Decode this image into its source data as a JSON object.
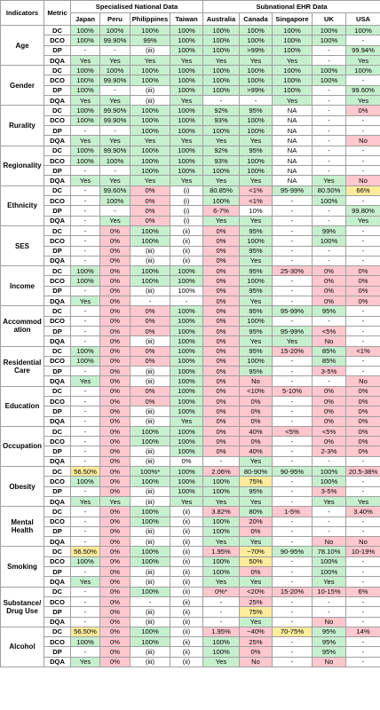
{
  "header": {
    "indicators": "Indicators",
    "metric": "Metric",
    "group1": "Specialised National Data",
    "group2": "Subnational EHR Data",
    "countries": [
      "Japan",
      "Peru",
      "Philippines",
      "Taiwan",
      "Australia",
      "Canada",
      "Singapore",
      "UK",
      "USA"
    ]
  },
  "colors": {
    "g": "#c6efce",
    "r": "#ffc7ce",
    "y": "#ffeb9c",
    "w": "#ffffff"
  },
  "indicators": [
    {
      "name": "Age",
      "rows": [
        {
          "metric": "DC",
          "cells": [
            "100%",
            "100%",
            "100%",
            "100%",
            "100%",
            "100%",
            "100%",
            "100%",
            "100%"
          ],
          "fills": "ggggggggg"
        },
        {
          "metric": "DCO",
          "cells": [
            "100%",
            "99.90%",
            "99%",
            "100%",
            "100%",
            "100%",
            "100%",
            "100%",
            "-"
          ],
          "fills": "ggggggggw"
        },
        {
          "metric": "DP",
          "cells": [
            "-",
            "-",
            "(iii)",
            "100%",
            "100%",
            ">99%",
            "100%",
            "-",
            "99.94%"
          ],
          "fills": "wwwggggwg"
        },
        {
          "metric": "DQA",
          "cells": [
            "Yes",
            "Yes",
            "Yes",
            "Yes",
            "Yes",
            "Yes",
            "Yes",
            "-",
            "Yes"
          ],
          "fills": "gggggggwg"
        }
      ]
    },
    {
      "name": "Gender",
      "rows": [
        {
          "metric": "DC",
          "cells": [
            "100%",
            "100%",
            "100%",
            "100%",
            "100%",
            "100%",
            "100%",
            "100%",
            "100%"
          ],
          "fills": "ggggggggg"
        },
        {
          "metric": "DCO",
          "cells": [
            "100%",
            "99.90%",
            "100%",
            "100%",
            "100%",
            "100%",
            "100%",
            "100%",
            "-"
          ],
          "fills": "ggggggggw"
        },
        {
          "metric": "DP",
          "cells": [
            "100%",
            "-",
            "(iii)",
            "100%",
            "100%",
            ">99%",
            "100%",
            "-",
            "99.60%"
          ],
          "fills": "gwwggggwg"
        },
        {
          "metric": "DQA",
          "cells": [
            "Yes",
            "Yes",
            "(iii)",
            "Yes",
            "-",
            "-",
            "Yes",
            "-",
            "Yes"
          ],
          "fills": "ggwgwwgwg"
        }
      ]
    },
    {
      "name": "Rurality",
      "rows": [
        {
          "metric": "DC",
          "cells": [
            "100%",
            "99.90%",
            "100%",
            "100%",
            "92%",
            "95%",
            "NA",
            "-",
            "0%"
          ],
          "fills": "ggggggwwr"
        },
        {
          "metric": "DCO",
          "cells": [
            "100%",
            "99.90%",
            "100%",
            "100%",
            "93%",
            "100%",
            "NA",
            "-",
            "-"
          ],
          "fills": "ggggggwww"
        },
        {
          "metric": "DP",
          "cells": [
            "-",
            "-",
            "100%",
            "100%",
            "100%",
            "100%",
            "NA",
            "-",
            "-"
          ],
          "fills": "wwggggwww"
        },
        {
          "metric": "DQA",
          "cells": [
            "Yes",
            "Yes",
            "Yes",
            "Yes",
            "Yes",
            "Yes",
            "NA",
            "-",
            "No"
          ],
          "fills": "ggggggwwr"
        }
      ]
    },
    {
      "name": "Regionality",
      "rows": [
        {
          "metric": "DC",
          "cells": [
            "100%",
            "99.90%",
            "100%",
            "100%",
            "92%",
            "95%",
            "NA",
            "-",
            "-"
          ],
          "fills": "ggggggwww"
        },
        {
          "metric": "DCO",
          "cells": [
            "100%",
            "100%",
            "100%",
            "100%",
            "93%",
            "100%",
            "NA",
            "-",
            "-"
          ],
          "fills": "ggggggwww"
        },
        {
          "metric": "DP",
          "cells": [
            "-",
            "-",
            "100%",
            "100%",
            "100%",
            "100%",
            "NA",
            "-",
            "-"
          ],
          "fills": "wwggggwww"
        },
        {
          "metric": "DQA",
          "cells": [
            "Yes",
            "Yes",
            "Yes",
            "Yes",
            "Yes",
            "Yes",
            "NA",
            "Yes",
            "No"
          ],
          "fills": "ggggggwgr"
        }
      ]
    },
    {
      "name": "Ethnicity",
      "rows": [
        {
          "metric": "DC",
          "cells": [
            "-",
            "99.60%",
            "0%",
            "(i)",
            "80.85%",
            "<1%",
            "95-99%",
            "80.50%",
            "66%"
          ],
          "fills": "wgrwgrggy"
        },
        {
          "metric": "DCO",
          "cells": [
            "-",
            "100%",
            "0%",
            "(i)",
            "100%",
            "<1%",
            "-",
            "100%",
            "-"
          ],
          "fills": "wgrwgrwgw"
        },
        {
          "metric": "DP",
          "cells": [
            "-",
            "-",
            "0%",
            "(i)",
            "6-7%",
            "10%",
            "-",
            "-",
            "99.80%"
          ],
          "fills": "wwrwrwwwg"
        },
        {
          "metric": "DQA",
          "cells": [
            "-",
            "Yes",
            "0%",
            "(i)",
            "Yes",
            "Yes",
            "-",
            "-",
            "Yes"
          ],
          "fills": "wgrwggwwg"
        }
      ]
    },
    {
      "name": "SES",
      "rows": [
        {
          "metric": "DC",
          "cells": [
            "-",
            "0%",
            "100%",
            "(ii)",
            "0%",
            "95%",
            "-",
            "99%",
            "-"
          ],
          "fills": "wrgwrgwgw"
        },
        {
          "metric": "DCO",
          "cells": [
            "-",
            "0%",
            "100%",
            "(ii)",
            "0%",
            "100%",
            "-",
            "100%",
            "-"
          ],
          "fills": "wrgwrgwgw"
        },
        {
          "metric": "DP",
          "cells": [
            "-",
            "0%",
            "(iii)",
            "(ii)",
            "0%",
            "95%",
            "-",
            "-",
            "-"
          ],
          "fills": "wrwwrgwww"
        },
        {
          "metric": "DQA",
          "cells": [
            "-",
            "0%",
            "(iii)",
            "(ii)",
            "0%",
            "Yes",
            "-",
            "-",
            "-"
          ],
          "fills": "wrwwrgwww"
        }
      ]
    },
    {
      "name": "Income",
      "rows": [
        {
          "metric": "DC",
          "cells": [
            "100%",
            "0%",
            "100%",
            "100%",
            "0%",
            "95%",
            "25-30%",
            "0%",
            "0%"
          ],
          "fills": "grggrgrrr"
        },
        {
          "metric": "DCO",
          "cells": [
            "100%",
            "0%",
            "100%",
            "100%",
            "0%",
            "100%",
            "-",
            "0%",
            "0%"
          ],
          "fills": "grggrgwrr"
        },
        {
          "metric": "DP",
          "cells": [
            "-",
            "0%",
            "(iii)",
            "100%",
            "0%",
            "95%",
            "-",
            "0%",
            "0%"
          ],
          "fills": "wrwwrgwrr"
        },
        {
          "metric": "DQA",
          "cells": [
            "Yes",
            "0%",
            "-",
            "-",
            "0%",
            "Yes",
            "-",
            "0%",
            "0%"
          ],
          "fills": "grwwrgwrr"
        }
      ]
    },
    {
      "name": "Accommodation",
      "rows": [
        {
          "metric": "DC",
          "cells": [
            "-",
            "0%",
            "0%",
            "100%",
            "0%",
            "95%",
            "95-99%",
            "95%",
            "-"
          ],
          "fills": "wrrgrgggw"
        },
        {
          "metric": "DCO",
          "cells": [
            "-",
            "0%",
            "0%",
            "100%",
            "0%",
            "100%",
            "-",
            "-",
            "-"
          ],
          "fills": "wrrgrgwww"
        },
        {
          "metric": "DP",
          "cells": [
            "-",
            "0%",
            "0%",
            "100%",
            "0%",
            "95%",
            "95-99%",
            "<5%",
            "-"
          ],
          "fills": "wrrgrggrw"
        },
        {
          "metric": "DQA",
          "cells": [
            "-",
            "0%",
            "(iii)",
            "100%",
            "0%",
            "Yes",
            "Yes",
            "No",
            "-"
          ],
          "fills": "wrwgrggrw"
        }
      ]
    },
    {
      "name": "Residential Care",
      "rows": [
        {
          "metric": "DC",
          "cells": [
            "100%",
            "0%",
            "0%",
            "100%",
            "0%",
            "95%",
            "15-20%",
            "85%",
            "<1%"
          ],
          "fills": "grrgrgrgr"
        },
        {
          "metric": "DCO",
          "cells": [
            "100%",
            "0%",
            "0%",
            "100%",
            "0%",
            "100%",
            "-",
            "85%",
            "-"
          ],
          "fills": "grrgrgwgw"
        },
        {
          "metric": "DP",
          "cells": [
            "-",
            "0%",
            "(iii)",
            "100%",
            "0%",
            "95%",
            "-",
            "3-5%",
            "-"
          ],
          "fills": "wrwgrgwrw"
        },
        {
          "metric": "DQA",
          "cells": [
            "Yes",
            "0%",
            "(iii)",
            "100%",
            "0%",
            "No",
            "-",
            "-",
            "No"
          ],
          "fills": "grwgrrwwr"
        }
      ]
    },
    {
      "name": "Education",
      "rows": [
        {
          "metric": "DC",
          "cells": [
            "-",
            "0%",
            "0%",
            "100%",
            "0%",
            "<10%",
            "5-10%",
            "0%",
            "0%"
          ],
          "fills": "wrrgrrrrr"
        },
        {
          "metric": "DCO",
          "cells": [
            "-",
            "0%",
            "0%",
            "100%",
            "0%",
            "0%",
            "-",
            "0%",
            "0%"
          ],
          "fills": "wrrgrrwrr"
        },
        {
          "metric": "DP",
          "cells": [
            "-",
            "0%",
            "(iii)",
            "100%",
            "0%",
            "0%",
            "-",
            "0%",
            "0%"
          ],
          "fills": "wrwgrrwrr"
        },
        {
          "metric": "DQA",
          "cells": [
            "-",
            "0%",
            "(iii)",
            "Yes",
            "0%",
            "0%",
            "-",
            "0%",
            "0%"
          ],
          "fills": "wrwgrrwrr"
        }
      ]
    },
    {
      "name": "Occupation",
      "rows": [
        {
          "metric": "DC",
          "cells": [
            "-",
            "0%",
            "100%",
            "100%",
            "0%",
            "40%",
            "<5%",
            "<5%",
            "0%"
          ],
          "fills": "wrggrrrrr"
        },
        {
          "metric": "DCO",
          "cells": [
            "-",
            "0%",
            "100%",
            "100%",
            "0%",
            "0%",
            "-",
            "0%",
            "0%"
          ],
          "fills": "wrggrrwrr"
        },
        {
          "metric": "DP",
          "cells": [
            "-",
            "0%",
            "(iii)",
            "100%",
            "0%",
            "40%",
            "-",
            "2-3%",
            "0%"
          ],
          "fills": "wrwgrrwrr"
        },
        {
          "metric": "DQA",
          "cells": [
            "-",
            "0%",
            "(iii)",
            "0%",
            "-",
            "Yes",
            "-",
            "-",
            "-"
          ],
          "fills": "wrwwwgwww"
        }
      ]
    },
    {
      "name": "Obesity",
      "rows": [
        {
          "metric": "DC",
          "cells": [
            "56.50%",
            "0%",
            "100%*",
            "100%",
            "2.06%",
            "80-90%",
            "90-95%",
            "100%",
            "20.5-38%"
          ],
          "fills": "yrggrgggr"
        },
        {
          "metric": "DCO",
          "cells": [
            "100%",
            "0%",
            "100%",
            "100%",
            "100%",
            "75%",
            "-",
            "100%",
            "-"
          ],
          "fills": "grgggywgw"
        },
        {
          "metric": "DP",
          "cells": [
            "-",
            "0%",
            "(iii)",
            "100%",
            "100%",
            "95%",
            "-",
            "3-5%",
            "-"
          ],
          "fills": "wrwgggwrw"
        },
        {
          "metric": "DQA",
          "cells": [
            "Yes",
            "Yes",
            "(iii)",
            "Yes",
            "Yes",
            "Yes",
            "-",
            "Yes",
            "Yes"
          ],
          "fills": "ggwgggwgg"
        }
      ]
    },
    {
      "name": "Mental Health",
      "rows": [
        {
          "metric": "DC",
          "cells": [
            "-",
            "0%",
            "100%",
            "(ii)",
            "3.82%",
            "80%",
            "1-5%",
            "-",
            "3.40%"
          ],
          "fills": "wrgwrgrwr"
        },
        {
          "metric": "DCO",
          "cells": [
            "-",
            "0%",
            "100%",
            "(ii)",
            "100%",
            "20%",
            "-",
            "-",
            "-"
          ],
          "fills": "wrgwgrwww"
        },
        {
          "metric": "DP",
          "cells": [
            "-",
            "0%",
            "(iii)",
            "(ii)",
            "100%",
            "0%",
            "-",
            "-",
            "-"
          ],
          "fills": "wrwwgrwww"
        },
        {
          "metric": "DQA",
          "cells": [
            "-",
            "0%",
            "(iii)",
            "(ii)",
            "Yes",
            "Yes",
            "-",
            "No",
            "No"
          ],
          "fills": "wrwwggwrr"
        }
      ]
    },
    {
      "name": "Smoking",
      "rows": [
        {
          "metric": "DC",
          "cells": [
            "56.50%",
            "0%",
            "100%",
            "(ii)",
            "1.95%",
            "~70%",
            "90-95%",
            "78.10%",
            "10-19%"
          ],
          "fills": "yrgwryggr"
        },
        {
          "metric": "DCO",
          "cells": [
            "100%",
            "0%",
            "100%",
            "(ii)",
            "100%",
            "50%",
            "-",
            "100%",
            "-"
          ],
          "fills": "grgwgywgw"
        },
        {
          "metric": "DP",
          "cells": [
            "-",
            "0%",
            "(iii)",
            "(ii)",
            "100%",
            "0%",
            "-",
            "100%",
            "-"
          ],
          "fills": "wrwwgrwgw"
        },
        {
          "metric": "DQA",
          "cells": [
            "Yes",
            "0%",
            "(iii)",
            "(ii)",
            "Yes",
            "Yes",
            "-",
            "Yes",
            "-"
          ],
          "fills": "grwwggwgw"
        }
      ]
    },
    {
      "name": "Substance/ Drug Use",
      "rows": [
        {
          "metric": "DC",
          "cells": [
            "-",
            "0%",
            "100%",
            "(ii)",
            "0%*",
            "<20%",
            "15-20%",
            "10-15%",
            "6%"
          ],
          "fills": "wrgwrrrrr"
        },
        {
          "metric": "DCO",
          "cells": [
            "-",
            "0%",
            "-",
            "(ii)",
            "-",
            "25%",
            "-",
            "-",
            "-"
          ],
          "fills": "wrwwwrwww"
        },
        {
          "metric": "DP",
          "cells": [
            "-",
            "0%",
            "(iii)",
            "(ii)",
            "-",
            "75%",
            "-",
            "-",
            "-"
          ],
          "fills": "wrwwwywww"
        },
        {
          "metric": "DQA",
          "cells": [
            "-",
            "0%",
            "(iii)",
            "(ii)",
            "-",
            "Yes",
            "-",
            "No",
            "-"
          ],
          "fills": "wrwwwgwrw"
        }
      ]
    },
    {
      "name": "Alcohol",
      "rows": [
        {
          "metric": "DC",
          "cells": [
            "56.50%",
            "0%",
            "100%",
            "(ii)",
            "1.95%",
            "~40%",
            "70-75%",
            "95%",
            "14%"
          ],
          "fills": "yrgwrrygr"
        },
        {
          "metric": "DCO",
          "cells": [
            "100%",
            "0%",
            "100%",
            "(ii)",
            "100%",
            "25%",
            "-",
            "95%",
            "-"
          ],
          "fills": "grgwgrwgw"
        },
        {
          "metric": "DP",
          "cells": [
            "-",
            "0%",
            "(iii)",
            "(ii)",
            "100%",
            "0%",
            "-",
            "95%",
            "-"
          ],
          "fills": "wrwwgrwgw"
        },
        {
          "metric": "DQA",
          "cells": [
            "Yes",
            "0%",
            "(iii)",
            "(ii)",
            "Yes",
            "No",
            "-",
            "No",
            "-"
          ],
          "fills": "grwwgrwrw"
        }
      ]
    }
  ]
}
